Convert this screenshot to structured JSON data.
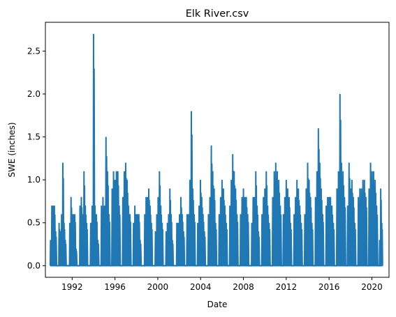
{
  "chart_data": {
    "type": "line",
    "title": "Elk River.csv",
    "xlabel": "Date",
    "ylabel": "SWE (inches)",
    "series_color": "#1f77b4",
    "xlim": [
      1989.5,
      2021.6
    ],
    "ylim": [
      -0.135,
      2.835
    ],
    "x_ticks": [
      {
        "value": 1992,
        "label": "1992"
      },
      {
        "value": 1996,
        "label": "1996"
      },
      {
        "value": 2000,
        "label": "2000"
      },
      {
        "value": 2004,
        "label": "2004"
      },
      {
        "value": 2008,
        "label": "2008"
      },
      {
        "value": 2012,
        "label": "2012"
      },
      {
        "value": 2016,
        "label": "2016"
      },
      {
        "value": 2020,
        "label": "2020"
      }
    ],
    "y_ticks": [
      {
        "value": 0.0,
        "label": "0.0"
      },
      {
        "value": 0.5,
        "label": "0.5"
      },
      {
        "value": 1.0,
        "label": "1.0"
      },
      {
        "value": 1.5,
        "label": "1.5"
      },
      {
        "value": 2.0,
        "label": "2.0"
      },
      {
        "value": 2.5,
        "label": "2.5"
      }
    ],
    "seasons": [
      {
        "start": 1989.95,
        "end": 1990.55,
        "peaks": [
          0.3,
          0.7,
          0.7,
          0.7,
          0.4
        ]
      },
      {
        "start": 1990.75,
        "end": 1991.45,
        "peaks": [
          0.5,
          0.4,
          0.6,
          1.2,
          0.5,
          0.3
        ]
      },
      {
        "start": 1991.75,
        "end": 1992.45,
        "peaks": [
          0.5,
          0.8,
          0.6,
          0.6,
          0.6,
          0.2
        ]
      },
      {
        "start": 1992.7,
        "end": 1993.45,
        "peaks": [
          0.7,
          0.8,
          0.6,
          1.1,
          0.7,
          0.5
        ]
      },
      {
        "start": 1993.7,
        "end": 1994.5,
        "peaks": [
          0.5,
          0.7,
          2.7,
          0.7,
          0.6,
          0.3
        ]
      },
      {
        "start": 1994.7,
        "end": 1995.55,
        "peaks": [
          0.7,
          0.8,
          0.7,
          1.5,
          1.1,
          0.6
        ]
      },
      {
        "start": 1995.7,
        "end": 1996.5,
        "peaks": [
          0.9,
          1.1,
          1.0,
          1.1,
          1.1,
          0.7
        ]
      },
      {
        "start": 1996.7,
        "end": 1997.5,
        "peaks": [
          0.8,
          1.1,
          1.2,
          1.0,
          0.7,
          0.6
        ]
      },
      {
        "start": 1997.7,
        "end": 1998.45,
        "peaks": [
          0.5,
          0.7,
          0.6,
          0.6,
          0.6,
          0.3
        ]
      },
      {
        "start": 1998.75,
        "end": 1999.5,
        "peaks": [
          0.6,
          0.8,
          0.8,
          0.9,
          0.7,
          0.5
        ]
      },
      {
        "start": 1999.75,
        "end": 2000.5,
        "peaks": [
          0.4,
          0.6,
          0.8,
          1.1,
          0.7,
          0.5
        ]
      },
      {
        "start": 2000.75,
        "end": 2001.45,
        "peaks": [
          0.4,
          0.5,
          0.6,
          0.9,
          0.6,
          0.3
        ]
      },
      {
        "start": 2001.75,
        "end": 2002.5,
        "peaks": [
          0.5,
          0.5,
          0.6,
          0.8,
          0.6,
          0.4
        ]
      },
      {
        "start": 2002.7,
        "end": 2003.5,
        "peaks": [
          0.6,
          0.6,
          1.0,
          1.8,
          0.9,
          0.6
        ]
      },
      {
        "start": 2003.7,
        "end": 2004.45,
        "peaks": [
          0.5,
          0.7,
          1.0,
          0.8,
          0.6,
          0.4
        ]
      },
      {
        "start": 2004.7,
        "end": 2005.5,
        "peaks": [
          0.6,
          0.8,
          1.4,
          1.1,
          0.9,
          0.5
        ]
      },
      {
        "start": 2005.7,
        "end": 2006.5,
        "peaks": [
          0.6,
          0.8,
          1.0,
          0.9,
          0.7,
          0.5
        ]
      },
      {
        "start": 2006.7,
        "end": 2007.5,
        "peaks": [
          0.7,
          1.0,
          1.3,
          1.1,
          0.9,
          0.6
        ]
      },
      {
        "start": 2007.7,
        "end": 2008.5,
        "peaks": [
          0.6,
          0.8,
          0.9,
          0.8,
          0.8,
          0.6
        ]
      },
      {
        "start": 2008.75,
        "end": 2009.5,
        "peaks": [
          0.5,
          0.8,
          0.8,
          1.1,
          0.7,
          0.4
        ]
      },
      {
        "start": 2009.7,
        "end": 2010.5,
        "peaks": [
          0.6,
          0.8,
          0.9,
          1.1,
          0.7,
          0.5
        ]
      },
      {
        "start": 2010.7,
        "end": 2011.55,
        "peaks": [
          0.8,
          1.1,
          1.2,
          1.1,
          1.0,
          0.7
        ]
      },
      {
        "start": 2011.7,
        "end": 2012.5,
        "peaks": [
          0.6,
          0.8,
          1.0,
          0.9,
          0.8,
          0.5
        ]
      },
      {
        "start": 2012.7,
        "end": 2013.5,
        "peaks": [
          0.6,
          0.8,
          1.0,
          0.9,
          0.7,
          0.5
        ]
      },
      {
        "start": 2013.7,
        "end": 2014.5,
        "peaks": [
          0.6,
          0.9,
          1.2,
          1.0,
          0.8,
          0.5
        ]
      },
      {
        "start": 2014.7,
        "end": 2015.5,
        "peaks": [
          0.8,
          1.1,
          1.6,
          1.2,
          0.9,
          0.6
        ]
      },
      {
        "start": 2015.7,
        "end": 2016.5,
        "peaks": [
          0.7,
          0.8,
          0.8,
          0.8,
          0.7,
          0.5
        ]
      },
      {
        "start": 2016.7,
        "end": 2017.55,
        "peaks": [
          0.9,
          1.1,
          2.0,
          1.2,
          1.1,
          0.8
        ]
      },
      {
        "start": 2017.7,
        "end": 2018.5,
        "peaks": [
          0.7,
          1.2,
          0.9,
          1.0,
          0.8,
          0.5
        ]
      },
      {
        "start": 2018.7,
        "end": 2019.55,
        "peaks": [
          0.8,
          0.9,
          0.9,
          1.0,
          1.0,
          0.8
        ]
      },
      {
        "start": 2019.7,
        "end": 2020.55,
        "peaks": [
          0.9,
          1.2,
          1.1,
          1.1,
          1.0,
          0.7
        ]
      },
      {
        "start": 2020.7,
        "end": 2021.0,
        "peaks": [
          0.3,
          0.9,
          0.5
        ]
      }
    ]
  }
}
